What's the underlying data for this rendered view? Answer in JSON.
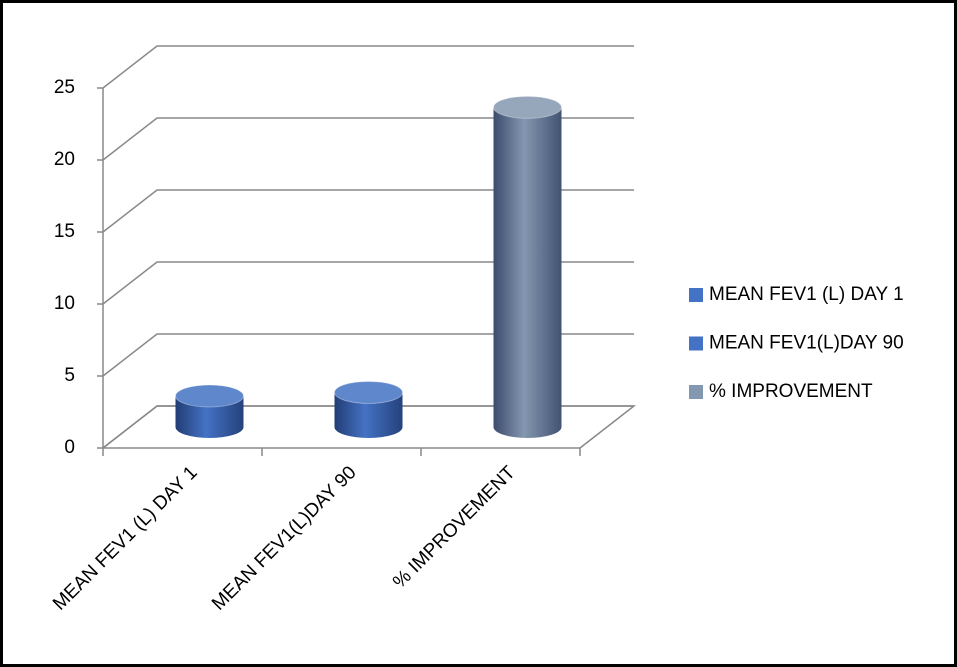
{
  "chart_data": {
    "type": "bar3d",
    "categories": [
      "MEAN FEV1 (L) DAY 1",
      "MEAN FEV1(L)DAY 90",
      "% IMPROVEMENT"
    ],
    "values": [
      2.15,
      2.4,
      22.2
    ],
    "colors": [
      "#4472c4",
      "#4472c4",
      "#8497b0"
    ],
    "ylim": [
      0,
      25
    ],
    "yticks": [
      0,
      5,
      10,
      15,
      20,
      25
    ],
    "grid": true,
    "legend": "right"
  }
}
